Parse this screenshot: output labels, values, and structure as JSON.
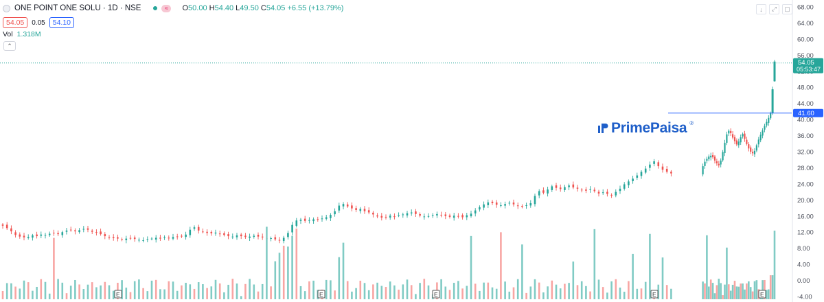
{
  "header": {
    "symbol_title": "ONE POINT ONE SOLU · 1D · NSE",
    "ohlc": {
      "o_label": "O",
      "o": "50.00",
      "h_label": "H",
      "h": "54.40",
      "l_label": "L",
      "l": "49.50",
      "c_label": "C",
      "c": "54.05",
      "change": "+6.55 (+13.79%)"
    },
    "bid": "54.05",
    "spread": "0.05",
    "ask": "54.10",
    "volume_label": "Vol",
    "volume_value": "1.318M",
    "collapse_icon": "chevron-up-icon",
    "window_icons": [
      "arrow-down-icon",
      "fullscreen-icon",
      "maximize-icon"
    ]
  },
  "watermark": {
    "text": "PrimePaisa",
    "reg": "®"
  },
  "colors": {
    "up": "#26a69a",
    "down": "#ef5350",
    "blue": "#2962ff",
    "vol_up": "#80cbc4",
    "vol_down": "#f8a5a3"
  },
  "chart_data": {
    "type": "candlestick",
    "y_axis": {
      "ticks": [
        "68.00",
        "64.00",
        "60.00",
        "56.00",
        "52.00",
        "48.00",
        "44.00",
        "40.00",
        "36.00",
        "32.00",
        "28.00",
        "24.00",
        "20.00",
        "16.00",
        "12.00",
        "8.00",
        "4.00",
        "0.00",
        "-4.00"
      ],
      "range": [
        -4,
        68
      ]
    },
    "last_price": {
      "value": "54.05",
      "countdown": "05:53:47"
    },
    "level_line": {
      "value": "41.60"
    },
    "earnings_markers": [
      "E",
      "E",
      "E",
      "E",
      "E"
    ],
    "close_series": [
      13.6,
      13.0,
      12.2,
      11.3,
      10.9,
      10.7,
      10.8,
      11.2,
      11.0,
      11.4,
      11.3,
      11.6,
      11.8,
      11.5,
      12.0,
      12.4,
      12.6,
      12.2,
      12.5,
      12.8,
      12.6,
      12.1,
      11.9,
      11.5,
      11.0,
      10.7,
      10.5,
      10.4,
      10.2,
      10.4,
      10.5,
      10.3,
      10.1,
      10.0,
      10.3,
      10.4,
      10.6,
      10.4,
      10.7,
      10.6,
      10.8,
      10.9,
      11.0,
      11.4,
      12.6,
      13.2,
      12.4,
      12.1,
      11.8,
      11.7,
      11.9,
      11.6,
      11.3,
      11.0,
      10.9,
      11.2,
      11.0,
      10.8,
      10.9,
      11.1,
      10.9,
      10.7,
      10.4,
      10.5,
      10.2,
      10.0,
      10.6,
      11.8,
      13.8,
      14.9,
      15.1,
      14.8,
      15.0,
      15.2,
      15.1,
      15.4,
      15.7,
      16.3,
      17.2,
      18.6,
      19.0,
      18.4,
      17.9,
      17.5,
      17.8,
      17.2,
      16.9,
      16.4,
      15.9,
      15.6,
      15.8,
      16.1,
      15.9,
      16.2,
      16.4,
      16.7,
      16.9,
      16.5,
      16.1,
      15.9,
      16.0,
      16.3,
      16.5,
      16.2,
      16.0,
      15.8,
      16.1,
      16.0,
      15.7,
      16.2,
      16.6,
      17.4,
      18.2,
      18.9,
      19.4,
      19.2,
      18.8,
      18.7,
      19.0,
      19.3,
      18.9,
      18.5,
      18.3,
      18.7,
      19.2,
      21.0,
      22.2,
      21.8,
      22.6,
      23.4,
      23.0,
      22.7,
      23.2,
      23.6,
      23.1,
      22.8,
      22.5,
      22.3,
      22.7,
      22.2,
      21.6,
      21.9,
      21.5,
      21.2,
      22.0,
      22.8,
      23.9,
      24.6,
      25.3,
      26.1,
      27.0,
      27.8,
      28.8,
      29.6,
      28.4,
      27.5,
      27.0,
      26.6
    ],
    "close_series_b": [
      28.4,
      29.5,
      30.2,
      30.8,
      31.0,
      30.6,
      29.8,
      29.1,
      28.6,
      29.8,
      31.9,
      34.2,
      36.3,
      37.2,
      36.6,
      35.5,
      34.6,
      33.8,
      34.5,
      35.6,
      36.4,
      35.2,
      33.9,
      32.8,
      32.0,
      31.6,
      32.2,
      33.6,
      35.0,
      36.2,
      37.3,
      38.4,
      39.4,
      40.4,
      41.6,
      47.5,
      54.05
    ],
    "volume_description": "daily volume histogram",
    "volume_scale_max": 12.0
  }
}
